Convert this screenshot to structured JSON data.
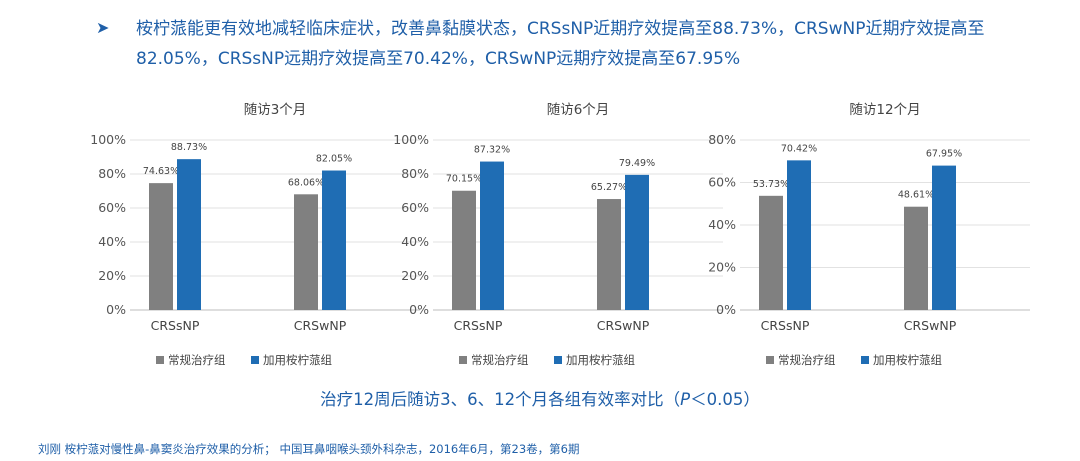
{
  "header": {
    "bullet_icon": "triangle-right-icon",
    "text": "桉柠蒎能更有效地减轻临床症状，改善鼻黏膜状态，CRSsNP近期疗效提高至88.73%，CRSwNP近期疗效提高至 82.05%，CRSsNP远期疗效提高至70.42%，CRSwNP远期疗效提高至67.95%"
  },
  "colors": {
    "control": "#808080",
    "treatment": "#1f6db4",
    "text_blue": "#1f5fa8"
  },
  "chart_data": [
    {
      "type": "bar",
      "title": "随访3个月",
      "categories": [
        "CRSsNP",
        "CRSwNP"
      ],
      "series": [
        {
          "name": "常规治疗组",
          "values": [
            74.63,
            68.06
          ],
          "labels": [
            "74.63%",
            "68.06%"
          ]
        },
        {
          "name": "加用桉柠蒎组",
          "values": [
            88.73,
            82.05
          ],
          "labels": [
            "88.73%",
            "82.05%"
          ]
        }
      ],
      "ylim": [
        0,
        100
      ],
      "yticks": [
        "0%",
        "20%",
        "40%",
        "60%",
        "80%",
        "100%"
      ],
      "grid": true,
      "legend": "bottom"
    },
    {
      "type": "bar",
      "title": "随访6个月",
      "categories": [
        "CRSsNP",
        "CRSwNP"
      ],
      "series": [
        {
          "name": "常规治疗组",
          "values": [
            70.15,
            65.27
          ],
          "labels": [
            "70.15%",
            "65.27%"
          ]
        },
        {
          "name": "加用桉柠蒎组",
          "values": [
            87.32,
            79.49
          ],
          "labels": [
            "87.32%",
            "79.49%"
          ]
        }
      ],
      "ylim": [
        0,
        100
      ],
      "yticks": [
        "0%",
        "20%",
        "40%",
        "60%",
        "80%",
        "100%"
      ],
      "grid": true,
      "legend": "bottom"
    },
    {
      "type": "bar",
      "title": "随访12个月",
      "categories": [
        "CRSsNP",
        "CRSwNP"
      ],
      "series": [
        {
          "name": "常规治疗组",
          "values": [
            53.73,
            48.61
          ],
          "labels": [
            "53.73%",
            "48.61%"
          ]
        },
        {
          "name": "加用桉柠蒎组",
          "values": [
            70.42,
            67.95
          ],
          "labels": [
            "70.42%",
            "67.95%"
          ]
        }
      ],
      "ylim": [
        0,
        80
      ],
      "yticks": [
        "0%",
        "20%",
        "40%",
        "60%",
        "80%"
      ],
      "grid": true,
      "legend": "bottom"
    }
  ],
  "caption": {
    "before": "治疗12周后随访3、6、12个月各组有效率对比（",
    "p": "P",
    "after": "＜0.05）"
  },
  "source": "刘刚  桉柠蒎对慢性鼻-鼻窦炎治疗效果的分析；  中国耳鼻咽喉头颈外科杂志，2016年6月，第23卷，第6期"
}
